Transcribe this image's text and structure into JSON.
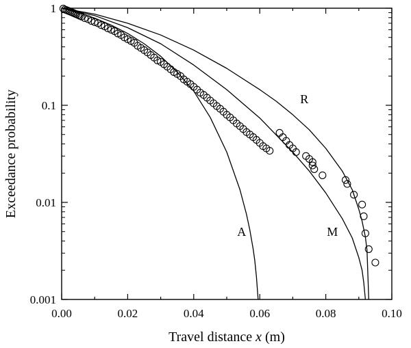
{
  "chart_data": {
    "type": "scatter",
    "xlabel": "Travel distance",
    "xlabel_var": "x",
    "xlabel_unit": "(m)",
    "ylabel": "Exceedance probability",
    "xlim": [
      0.0,
      0.1
    ],
    "ylim": [
      0.001,
      1
    ],
    "yscale": "log",
    "x_ticks": [
      {
        "v": 0.0,
        "label": "0.00"
      },
      {
        "v": 0.02,
        "label": "0.02"
      },
      {
        "v": 0.04,
        "label": "0.04"
      },
      {
        "v": 0.06,
        "label": "0.06"
      },
      {
        "v": 0.08,
        "label": "0.08"
      },
      {
        "v": 0.1,
        "label": "0.10"
      }
    ],
    "y_ticks": [
      {
        "v": 1,
        "label": "1"
      },
      {
        "v": 0.1,
        "label": "0.1"
      },
      {
        "v": 0.01,
        "label": "0.01"
      },
      {
        "v": 0.001,
        "label": "0.001"
      }
    ],
    "grid": false,
    "legend": "none",
    "observed": {
      "marker": "open-circle",
      "x": [
        0.0005,
        0.001,
        0.0015,
        0.002,
        0.0025,
        0.003,
        0.0035,
        0.004,
        0.0045,
        0.005,
        0.0055,
        0.006,
        0.007,
        0.008,
        0.009,
        0.01,
        0.011,
        0.012,
        0.013,
        0.014,
        0.015,
        0.016,
        0.017,
        0.018,
        0.019,
        0.02,
        0.021,
        0.022,
        0.023,
        0.024,
        0.025,
        0.026,
        0.027,
        0.028,
        0.029,
        0.03,
        0.031,
        0.032,
        0.033,
        0.034,
        0.035,
        0.036,
        0.037,
        0.038,
        0.039,
        0.04,
        0.041,
        0.042,
        0.043,
        0.044,
        0.045,
        0.046,
        0.047,
        0.048,
        0.049,
        0.05,
        0.051,
        0.052,
        0.053,
        0.054,
        0.055,
        0.056,
        0.057,
        0.058,
        0.059,
        0.06,
        0.061,
        0.062,
        0.063,
        0.066,
        0.067,
        0.068,
        0.069,
        0.07,
        0.071,
        0.074,
        0.075,
        0.076,
        0.076,
        0.0765,
        0.079,
        0.086,
        0.0865,
        0.0885,
        0.091,
        0.0915,
        0.092,
        0.093,
        0.095
      ],
      "y": [
        0.99,
        0.97,
        0.955,
        0.94,
        0.925,
        0.91,
        0.895,
        0.88,
        0.865,
        0.85,
        0.835,
        0.82,
        0.79,
        0.77,
        0.74,
        0.72,
        0.7,
        0.67,
        0.65,
        0.62,
        0.6,
        0.58,
        0.55,
        0.53,
        0.5,
        0.48,
        0.46,
        0.44,
        0.41,
        0.39,
        0.37,
        0.35,
        0.33,
        0.31,
        0.29,
        0.28,
        0.265,
        0.25,
        0.235,
        0.22,
        0.21,
        0.2,
        0.185,
        0.175,
        0.165,
        0.155,
        0.145,
        0.135,
        0.128,
        0.12,
        0.112,
        0.105,
        0.098,
        0.092,
        0.086,
        0.08,
        0.075,
        0.07,
        0.065,
        0.061,
        0.057,
        0.053,
        0.05,
        0.047,
        0.044,
        0.041,
        0.038,
        0.036,
        0.034,
        0.052,
        0.047,
        0.043,
        0.039,
        0.036,
        0.033,
        0.03,
        0.028,
        0.026,
        0.024,
        0.022,
        0.019,
        0.017,
        0.0155,
        0.012,
        0.0095,
        0.0072,
        0.0048,
        0.0033,
        0.0024
      ]
    },
    "curves": [
      {
        "label": "A",
        "x": [
          0.0,
          0.005,
          0.01,
          0.015,
          0.02,
          0.025,
          0.03,
          0.035,
          0.04,
          0.045,
          0.05,
          0.054,
          0.056,
          0.057,
          0.058,
          0.0585,
          0.059,
          0.0595
        ],
        "y": [
          1.0,
          0.9,
          0.79,
          0.67,
          0.55,
          0.43,
          0.32,
          0.22,
          0.14,
          0.075,
          0.033,
          0.0135,
          0.0075,
          0.0052,
          0.0033,
          0.0025,
          0.0017,
          0.001
        ]
      },
      {
        "label": "M",
        "x": [
          0.0,
          0.01,
          0.02,
          0.03,
          0.04,
          0.05,
          0.06,
          0.07,
          0.075,
          0.08,
          0.085,
          0.088,
          0.09,
          0.091,
          0.0915,
          0.092
        ],
        "y": [
          1.0,
          0.84,
          0.63,
          0.43,
          0.26,
          0.145,
          0.074,
          0.033,
          0.021,
          0.0125,
          0.0068,
          0.0043,
          0.0027,
          0.002,
          0.0015,
          0.001
        ]
      },
      {
        "label": "R",
        "x": [
          0.0,
          0.01,
          0.02,
          0.03,
          0.04,
          0.05,
          0.06,
          0.065,
          0.07,
          0.075,
          0.08,
          0.085,
          0.088,
          0.09,
          0.091,
          0.092,
          0.0925,
          0.093
        ],
        "y": [
          1.0,
          0.87,
          0.7,
          0.53,
          0.37,
          0.24,
          0.145,
          0.11,
          0.08,
          0.056,
          0.036,
          0.021,
          0.0135,
          0.0085,
          0.0064,
          0.0044,
          0.0032,
          0.001
        ]
      }
    ],
    "annotations": [
      {
        "text": "R",
        "x": 0.0735,
        "y": 0.105
      },
      {
        "text": "A",
        "x": 0.0545,
        "y": 0.0045
      },
      {
        "text": "M",
        "x": 0.082,
        "y": 0.0045
      }
    ]
  }
}
